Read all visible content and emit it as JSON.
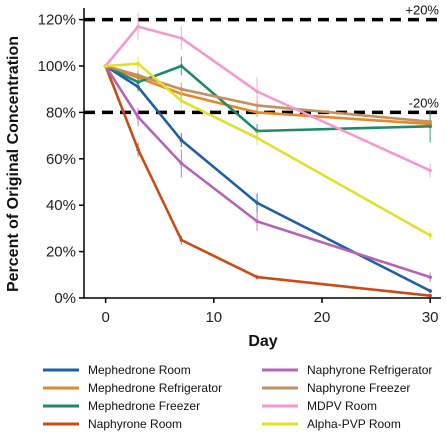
{
  "chart_data": {
    "type": "line",
    "xlabel": "Day",
    "ylabel": "Percent of Original Concentration",
    "xlim": [
      -2,
      31
    ],
    "ylim": [
      0,
      125
    ],
    "x_ticks": [
      {
        "value": 0,
        "label": "0"
      },
      {
        "value": 10,
        "label": "10"
      },
      {
        "value": 20,
        "label": "20"
      },
      {
        "value": 30,
        "label": "30"
      }
    ],
    "y_ticks": [
      {
        "value": 0,
        "label": "0%"
      },
      {
        "value": 20,
        "label": "20%"
      },
      {
        "value": 40,
        "label": "40%"
      },
      {
        "value": 60,
        "label": "60%"
      },
      {
        "value": 80,
        "label": "80%"
      },
      {
        "value": 100,
        "label": "100%"
      },
      {
        "value": 120,
        "label": "120%"
      }
    ],
    "reference_lines": [
      {
        "y": 120,
        "label": "+20%",
        "style": "dashed"
      },
      {
        "y": 80,
        "label": "-20%",
        "style": "dashed"
      }
    ],
    "x": [
      0,
      3,
      7,
      14,
      30
    ],
    "series": [
      {
        "name": "Mephedrone Room",
        "color": "#1f5fa8",
        "values": [
          100,
          91,
          68,
          41,
          3
        ],
        "errors": [
          0,
          2,
          3,
          4,
          1
        ]
      },
      {
        "name": "Mephedrone Refrigerator",
        "color": "#e8872a",
        "values": [
          100,
          95,
          88,
          80,
          75
        ],
        "errors": [
          0,
          2,
          2,
          2,
          2
        ]
      },
      {
        "name": "Mephedrone Freezer",
        "color": "#1e8a68",
        "values": [
          100,
          93,
          100,
          72,
          74
        ],
        "errors": [
          0,
          3,
          4,
          3,
          7
        ]
      },
      {
        "name": "Naphyrone Room",
        "color": "#c94c15",
        "values": [
          100,
          64,
          25,
          9,
          1
        ],
        "errors": [
          0,
          3,
          2,
          1,
          0.5
        ]
      },
      {
        "name": "Naphyrone Refrigerator",
        "color": "#b565b8",
        "values": [
          100,
          78,
          58,
          33,
          9
        ],
        "errors": [
          0,
          4,
          6,
          4,
          2
        ]
      },
      {
        "name": "Naphyrone Freezer",
        "color": "#c4905e",
        "values": [
          100,
          96,
          90,
          83,
          76
        ],
        "errors": [
          0,
          2,
          3,
          2,
          2
        ]
      },
      {
        "name": "MDPV Room",
        "color": "#f29ad0",
        "values": [
          100,
          117,
          112,
          89,
          55
        ],
        "errors": [
          0,
          6,
          5,
          6,
          3
        ]
      },
      {
        "name": "Alpha-PVP Room",
        "color": "#e3e02a",
        "values": [
          100,
          101,
          85,
          69,
          27
        ],
        "errors": [
          0,
          3,
          4,
          3,
          2
        ]
      }
    ],
    "legend": {
      "placement": "bottom",
      "columns": 2,
      "items": [
        "Mephedrone Room",
        "Naphyrone Refrigerator",
        "Mephedrone Refrigerator",
        "Naphyrone Freezer",
        "Mephedrone Freezer",
        "MDPV Room",
        "Naphyrone Room",
        "Alpha-PVP Room"
      ]
    },
    "grid": false
  }
}
